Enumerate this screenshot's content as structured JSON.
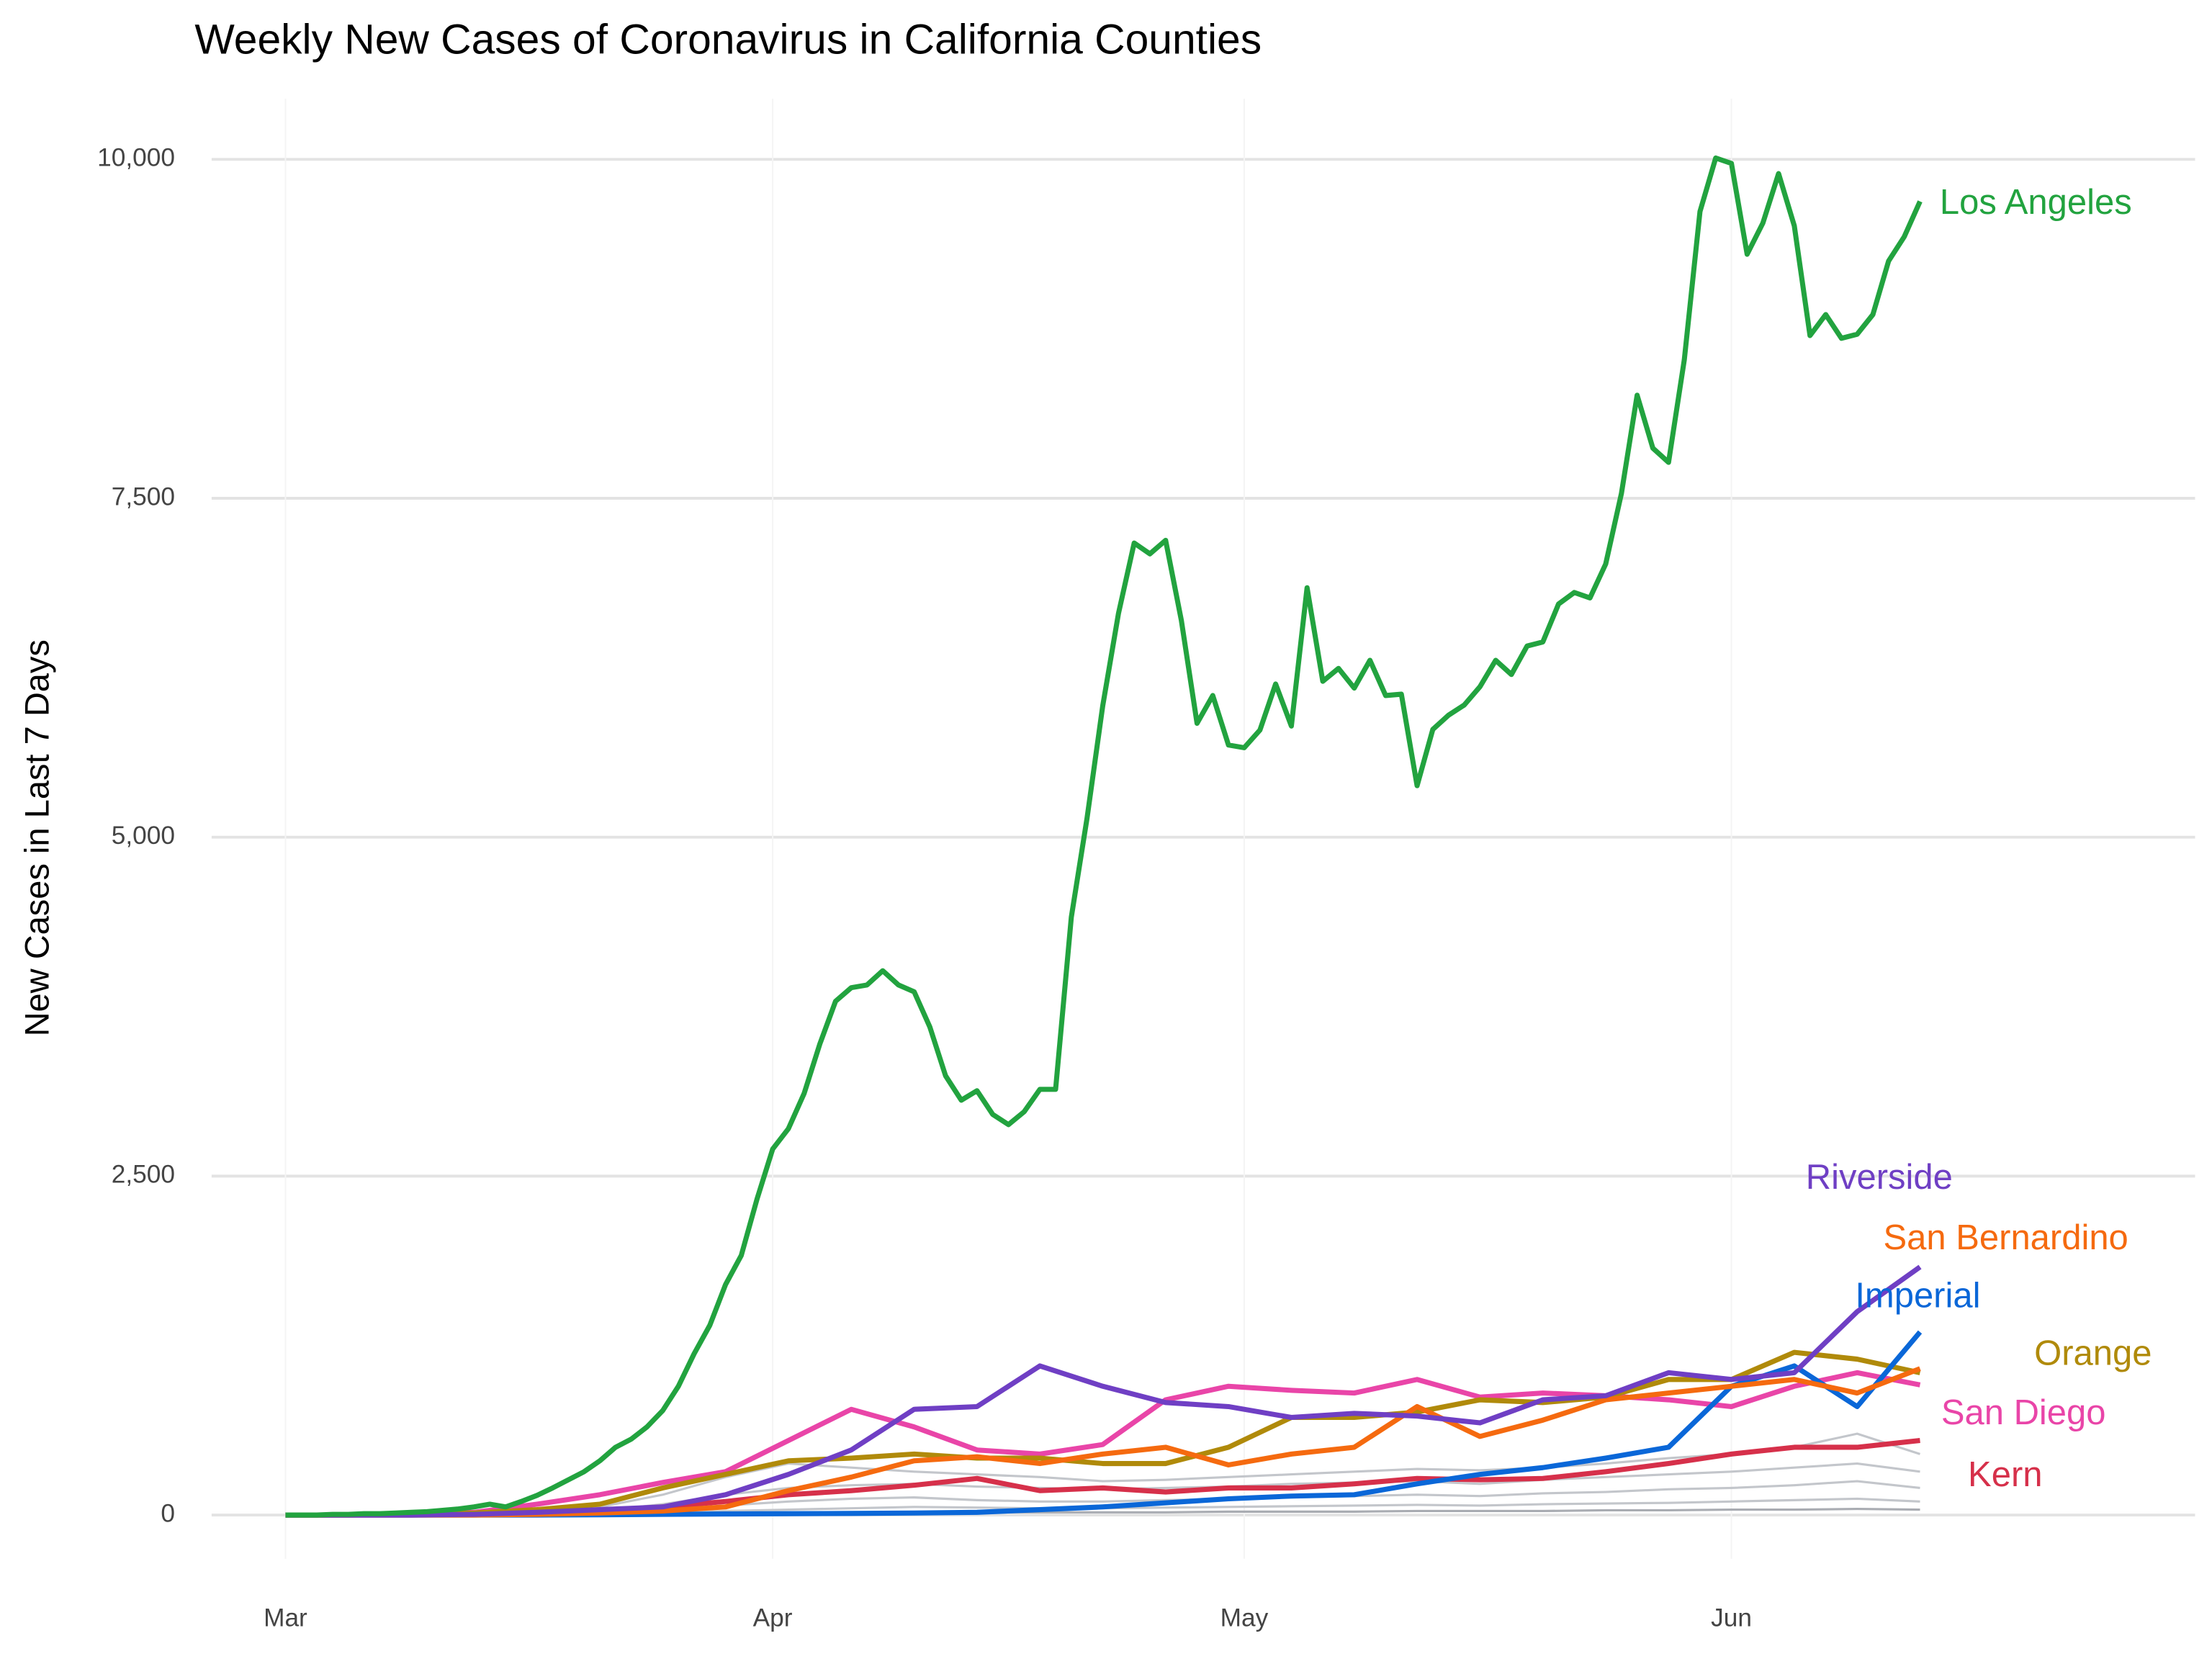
{
  "chart_data": {
    "type": "line",
    "title": "Weekly New Cases of Coronavirus in California Counties",
    "y_label": "New Cases in Last 7 Days",
    "xlim": [
      -4.7,
      121.5
    ],
    "xticks": [
      {
        "value": 0,
        "label": "Mar"
      },
      {
        "value": 31,
        "label": "Apr"
      },
      {
        "value": 61,
        "label": "May"
      },
      {
        "value": 92,
        "label": "Jun"
      }
    ],
    "ylim": [
      -323,
      10447
    ],
    "yticks": [
      0,
      {
        "value": 2500,
        "label": "2,500"
      },
      {
        "value": 5000,
        "label": "5,000"
      },
      {
        "value": 7500,
        "label": "7,500"
      },
      {
        "value": 10000,
        "label": "10,000"
      }
    ],
    "grid": true,
    "other_series": [
      {
        "color": "#c3c6cb",
        "x": [
          0,
          4,
          8,
          12,
          16,
          20,
          24,
          28,
          32,
          36,
          40,
          44,
          48,
          52,
          56,
          60,
          64,
          68,
          72,
          76,
          80,
          84,
          88,
          92,
          96,
          100,
          104
        ],
        "values": [
          0,
          0,
          0,
          5,
          20,
          60,
          150,
          280,
          380,
          350,
          320,
          300,
          280,
          250,
          260,
          280,
          300,
          320,
          340,
          330,
          350,
          380,
          420,
          450,
          500,
          600,
          450
        ]
      },
      {
        "color": "#c3c6cb",
        "x": [
          0,
          4,
          8,
          12,
          16,
          20,
          24,
          28,
          32,
          36,
          40,
          44,
          48,
          52,
          56,
          60,
          64,
          68,
          72,
          76,
          80,
          84,
          88,
          92,
          96,
          100,
          104
        ],
        "values": [
          0,
          0,
          0,
          2,
          10,
          30,
          80,
          150,
          200,
          220,
          230,
          210,
          200,
          190,
          200,
          210,
          230,
          240,
          250,
          230,
          260,
          280,
          300,
          320,
          350,
          380,
          320
        ]
      },
      {
        "color": "#c3c6cb",
        "x": [
          0,
          4,
          8,
          12,
          16,
          20,
          24,
          28,
          32,
          36,
          40,
          44,
          48,
          52,
          56,
          60,
          64,
          68,
          72,
          76,
          80,
          84,
          88,
          92,
          96,
          100,
          104
        ],
        "values": [
          0,
          0,
          0,
          0,
          5,
          15,
          40,
          70,
          100,
          120,
          130,
          110,
          100,
          100,
          110,
          120,
          130,
          140,
          150,
          140,
          160,
          170,
          190,
          200,
          220,
          250,
          200
        ]
      },
      {
        "color": "#c3c6cb",
        "x": [
          0,
          4,
          8,
          12,
          16,
          20,
          24,
          28,
          32,
          36,
          40,
          44,
          48,
          52,
          56,
          60,
          64,
          68,
          72,
          76,
          80,
          84,
          88,
          92,
          96,
          100,
          104
        ],
        "values": [
          0,
          0,
          0,
          0,
          2,
          5,
          15,
          30,
          40,
          50,
          60,
          55,
          50,
          50,
          55,
          60,
          65,
          70,
          75,
          70,
          80,
          85,
          90,
          100,
          110,
          120,
          100
        ]
      },
      {
        "color": "#a9acb2",
        "x": [
          0,
          4,
          8,
          12,
          16,
          20,
          24,
          28,
          32,
          36,
          40,
          44,
          48,
          52,
          56,
          60,
          64,
          68,
          72,
          76,
          80,
          84,
          88,
          92,
          96,
          100,
          104
        ],
        "values": [
          0,
          0,
          0,
          0,
          1,
          2,
          5,
          10,
          15,
          20,
          20,
          20,
          20,
          20,
          20,
          25,
          25,
          25,
          30,
          30,
          30,
          35,
          35,
          40,
          40,
          45,
          40
        ]
      }
    ],
    "series": [
      {
        "name": "Los Angeles",
        "color": "#22a33f",
        "x": [
          0,
          1,
          2,
          3,
          4,
          5,
          6,
          7,
          8,
          9,
          10,
          11,
          12,
          13,
          14,
          15,
          16,
          17,
          18,
          19,
          20,
          21,
          22,
          23,
          24,
          25,
          26,
          27,
          28,
          29,
          30,
          31,
          32,
          33,
          34,
          35,
          36,
          37,
          38,
          39,
          40,
          41,
          42,
          43,
          44,
          45,
          46,
          47,
          48,
          49,
          50,
          51,
          52,
          53,
          54,
          55,
          56,
          57,
          58,
          59,
          60,
          61,
          62,
          63,
          64,
          65,
          66,
          67,
          68,
          69,
          70,
          71,
          72,
          73,
          74,
          75,
          76,
          77,
          78,
          79,
          80,
          81,
          82,
          83,
          84,
          85,
          86,
          87,
          88,
          89,
          90,
          91,
          92,
          93,
          94,
          95,
          96,
          97,
          98,
          99,
          100,
          101,
          102,
          103,
          104
        ],
        "values": [
          0,
          0,
          0,
          5,
          5,
          10,
          10,
          15,
          20,
          25,
          35,
          45,
          60,
          80,
          60,
          100,
          145,
          200,
          260,
          320,
          400,
          500,
          560,
          650,
          770,
          950,
          1190,
          1400,
          1700,
          1915,
          2330,
          2700,
          2850,
          3110,
          3475,
          3790,
          3890,
          3910,
          4015,
          3910,
          3860,
          3600,
          3240,
          3060,
          3130,
          2955,
          2880,
          2975,
          3140,
          3140,
          4410,
          5140,
          5970,
          6650,
          7170,
          7090,
          7190,
          6600,
          5840,
          6045,
          5680,
          5660,
          5790,
          6130,
          5820,
          6840,
          6150,
          6245,
          6100,
          6305,
          6045,
          6055,
          5380,
          5795,
          5900,
          5975,
          6110,
          6305,
          6200,
          6410,
          6440,
          6720,
          6805,
          6765,
          7015,
          7535,
          8260,
          7870,
          7765,
          8520,
          9615,
          10010,
          9970,
          9300,
          9530,
          9895,
          9510,
          8700,
          8855,
          8680,
          8710,
          8855,
          9250,
          9430,
          9690
        ]
      },
      {
        "name": "Riverside",
        "color": "#6f3fc4",
        "x": [
          0,
          4,
          8,
          12,
          16,
          20,
          24,
          28,
          32,
          36,
          40,
          44,
          48,
          52,
          56,
          60,
          64,
          68,
          72,
          76,
          80,
          84,
          88,
          92,
          96,
          100,
          104
        ],
        "values": [
          0,
          0,
          0,
          5,
          20,
          40,
          60,
          150,
          300,
          480,
          780,
          800,
          1100,
          950,
          830,
          800,
          720,
          750,
          730,
          680,
          850,
          880,
          1050,
          1000,
          1050,
          1500,
          1830
        ]
      },
      {
        "name": "San Bernardino",
        "color": "#f56a0f",
        "x": [
          0,
          4,
          8,
          12,
          16,
          20,
          24,
          28,
          32,
          36,
          40,
          44,
          48,
          52,
          56,
          60,
          64,
          68,
          72,
          76,
          80,
          84,
          88,
          92,
          96,
          100,
          104
        ],
        "values": [
          0,
          0,
          0,
          0,
          5,
          15,
          30,
          60,
          180,
          280,
          400,
          430,
          380,
          450,
          500,
          370,
          450,
          500,
          800,
          580,
          700,
          850,
          900,
          950,
          1000,
          900,
          1080
        ]
      },
      {
        "name": "Imperial",
        "color": "#0a67d8",
        "x": [
          0,
          4,
          8,
          12,
          16,
          20,
          24,
          28,
          32,
          36,
          40,
          44,
          48,
          52,
          56,
          60,
          64,
          68,
          72,
          76,
          80,
          84,
          88,
          92,
          96,
          100,
          104
        ],
        "values": [
          0,
          0,
          0,
          0,
          0,
          2,
          5,
          8,
          10,
          12,
          15,
          20,
          40,
          60,
          90,
          120,
          140,
          150,
          230,
          300,
          350,
          420,
          500,
          950,
          1100,
          800,
          1350
        ]
      },
      {
        "name": "Orange",
        "color": "#b08a0a",
        "x": [
          0,
          4,
          8,
          12,
          16,
          20,
          24,
          28,
          32,
          36,
          40,
          44,
          48,
          52,
          56,
          60,
          64,
          68,
          72,
          76,
          80,
          84,
          88,
          92,
          96,
          100,
          104
        ],
        "values": [
          0,
          0,
          5,
          15,
          40,
          80,
          200,
          300,
          400,
          420,
          450,
          420,
          420,
          380,
          380,
          500,
          720,
          720,
          760,
          850,
          830,
          870,
          1000,
          1000,
          1200,
          1150,
          1050
        ]
      },
      {
        "name": "San Diego",
        "color": "#e945a8",
        "x": [
          0,
          4,
          8,
          12,
          16,
          20,
          24,
          28,
          32,
          36,
          40,
          44,
          48,
          52,
          56,
          60,
          64,
          68,
          72,
          76,
          80,
          84,
          88,
          92,
          96,
          100,
          104
        ],
        "values": [
          0,
          0,
          5,
          20,
          80,
          150,
          240,
          320,
          550,
          780,
          650,
          480,
          450,
          520,
          850,
          950,
          920,
          900,
          1000,
          870,
          900,
          880,
          850,
          800,
          950,
          1050,
          960
        ]
      },
      {
        "name": "Kern",
        "color": "#d6304a",
        "x": [
          0,
          4,
          8,
          12,
          16,
          20,
          24,
          28,
          32,
          36,
          40,
          44,
          48,
          52,
          56,
          60,
          64,
          68,
          72,
          76,
          80,
          84,
          88,
          92,
          96,
          100,
          104
        ],
        "values": [
          0,
          0,
          0,
          2,
          10,
          30,
          60,
          100,
          150,
          180,
          220,
          270,
          180,
          200,
          170,
          200,
          200,
          230,
          270,
          260,
          270,
          320,
          380,
          450,
          500,
          500,
          550
        ]
      }
    ]
  }
}
